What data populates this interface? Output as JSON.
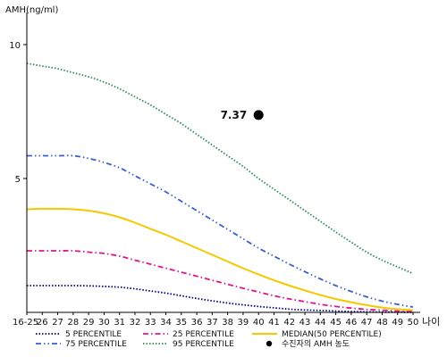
{
  "chart_data": {
    "type": "line",
    "title": "",
    "ylabel": "AMH(ng/ml)",
    "xlabel": "나이",
    "ylim": [
      0,
      11
    ],
    "yticks": [
      "5",
      "10"
    ],
    "ytick_values": [
      5,
      10
    ],
    "x": [
      "16-25",
      "26",
      "27",
      "28",
      "29",
      "30",
      "31",
      "32",
      "33",
      "34",
      "35",
      "36",
      "37",
      "38",
      "39",
      "40",
      "41",
      "42",
      "43",
      "44",
      "45",
      "46",
      "47",
      "48",
      "49",
      "50"
    ],
    "grid": false,
    "legend_position": "bottom",
    "series": [
      {
        "name": "5 PERCENTILE",
        "color": "#000080",
        "dash": "dotted",
        "values": [
          1.0,
          1.0,
          1.0,
          1.0,
          0.99,
          0.97,
          0.94,
          0.88,
          0.8,
          0.72,
          0.62,
          0.52,
          0.43,
          0.35,
          0.28,
          0.22,
          0.17,
          0.12,
          0.09,
          0.07,
          0.05,
          0.03,
          0.02,
          0.01,
          0.01,
          0.0
        ]
      },
      {
        "name": "25 PERCENTILE",
        "color": "#e0158c",
        "dash": "dashdot",
        "values": [
          2.3,
          2.3,
          2.3,
          2.3,
          2.25,
          2.2,
          2.1,
          1.95,
          1.8,
          1.65,
          1.5,
          1.35,
          1.2,
          1.05,
          0.9,
          0.76,
          0.62,
          0.5,
          0.4,
          0.3,
          0.22,
          0.16,
          0.11,
          0.08,
          0.05,
          0.03
        ]
      },
      {
        "name": "MEDIAN(50 PERCENTILE)",
        "color": "#f5c800",
        "dash": "solid",
        "values": [
          3.85,
          3.87,
          3.87,
          3.85,
          3.8,
          3.7,
          3.55,
          3.35,
          3.12,
          2.9,
          2.65,
          2.4,
          2.15,
          1.9,
          1.65,
          1.42,
          1.2,
          1.0,
          0.82,
          0.65,
          0.5,
          0.38,
          0.27,
          0.18,
          0.12,
          0.08
        ]
      },
      {
        "name": "75 PERCENTILE",
        "color": "#3a5fcd",
        "dash": "dashdotdot",
        "values": [
          5.85,
          5.85,
          5.85,
          5.85,
          5.75,
          5.6,
          5.4,
          5.1,
          4.8,
          4.5,
          4.15,
          3.8,
          3.45,
          3.1,
          2.75,
          2.4,
          2.1,
          1.8,
          1.52,
          1.25,
          1.0,
          0.78,
          0.58,
          0.42,
          0.3,
          0.2
        ]
      },
      {
        "name": "95 PERCENTILE",
        "color": "#2e8b57",
        "dash": "dotted",
        "values": [
          9.3,
          9.2,
          9.1,
          8.95,
          8.8,
          8.6,
          8.35,
          8.05,
          7.75,
          7.4,
          7.05,
          6.65,
          6.25,
          5.85,
          5.45,
          5.0,
          4.6,
          4.2,
          3.8,
          3.4,
          3.0,
          2.62,
          2.25,
          1.95,
          1.7,
          1.45
        ]
      }
    ],
    "annotation_point": {
      "legend_label": "수진자의 AMH 농도",
      "label": "7.37",
      "x": "40",
      "y": 7.37,
      "color": "#000000"
    }
  }
}
